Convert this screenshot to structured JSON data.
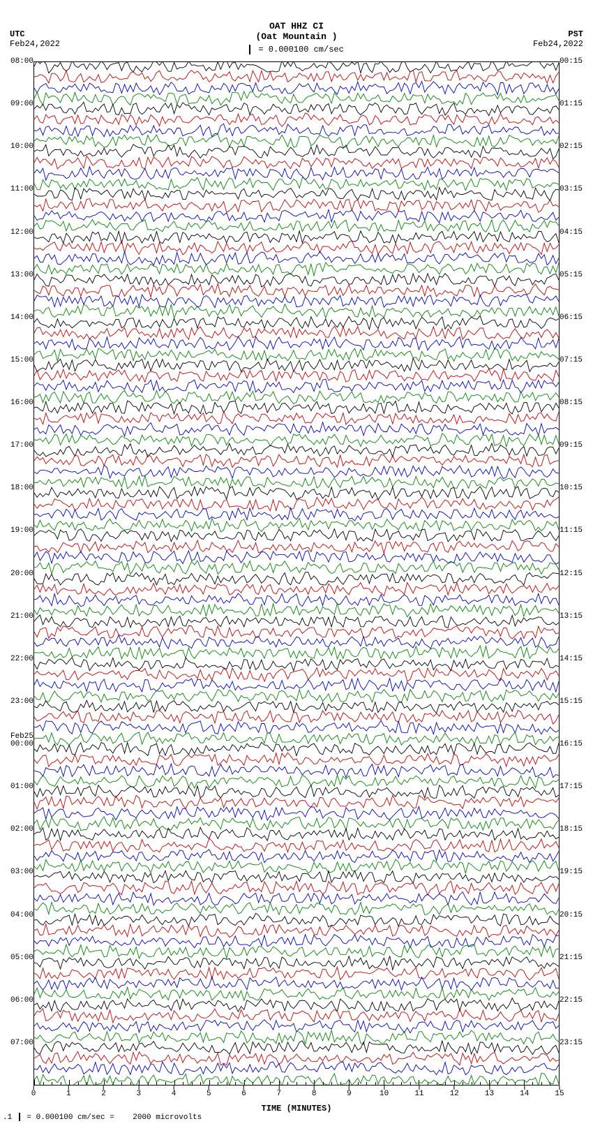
{
  "header": {
    "station": "OAT HHZ CI",
    "location": "(Oat Mountain )",
    "scale_text": "= 0.000100 cm/sec"
  },
  "tz": {
    "left": "UTC",
    "right": "PST"
  },
  "dates": {
    "left": "Feb24,2022",
    "right": "Feb24,2022"
  },
  "x_axis": {
    "title": "TIME (MINUTES)",
    "ticks": [
      "0",
      "1",
      "2",
      "3",
      "4",
      "5",
      "6",
      "7",
      "8",
      "9",
      "10",
      "11",
      "12",
      "13",
      "14",
      "15"
    ]
  },
  "footer": {
    "text_a": "= 0.000100 cm/sec =",
    "text_b": "2000 microvolts",
    "prefix": ".1"
  },
  "plot": {
    "hours": 24,
    "lines_per_hour": 4,
    "trace_colors": [
      "#000000",
      "#cc0000",
      "#0000cc",
      "#008800"
    ],
    "background": "#ffffff",
    "frame_color": "#000000",
    "utc_start_hour": 8,
    "pst_start": "00:15",
    "date_break_label": "Feb25",
    "utc_labels": [
      "08:00",
      "09:00",
      "10:00",
      "11:00",
      "12:00",
      "13:00",
      "14:00",
      "15:00",
      "16:00",
      "17:00",
      "18:00",
      "19:00",
      "20:00",
      "21:00",
      "22:00",
      "23:00",
      "00:00",
      "01:00",
      "02:00",
      "03:00",
      "04:00",
      "05:00",
      "06:00",
      "07:00"
    ],
    "pst_labels": [
      "00:15",
      "01:15",
      "02:15",
      "03:15",
      "04:15",
      "05:15",
      "06:15",
      "07:15",
      "08:15",
      "09:15",
      "10:15",
      "11:15",
      "12:15",
      "13:15",
      "14:15",
      "15:15",
      "16:15",
      "17:15",
      "18:15",
      "19:15",
      "20:15",
      "21:15",
      "22:15",
      "23:15"
    ],
    "date_break_index": 16,
    "amplitude": 8,
    "noise_density": 180
  }
}
